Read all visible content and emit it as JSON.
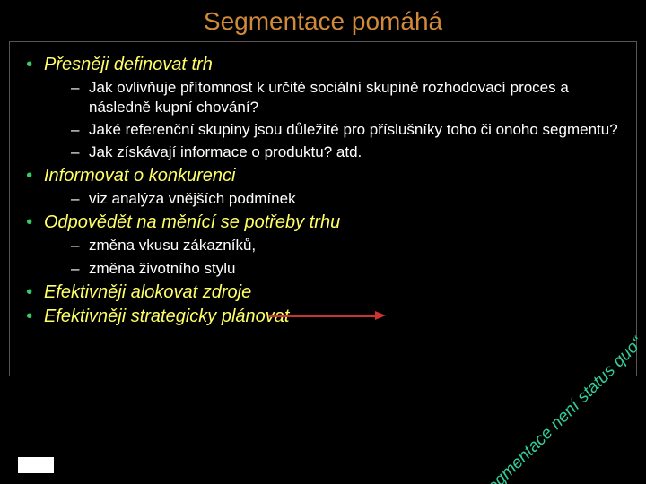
{
  "colors": {
    "background": "#000000",
    "title": "#d08a3a",
    "bullet_l1": "#33cc66",
    "text_l1": "#ffff66",
    "bullet_l2": "#ffffff",
    "text_l2": "#ffffff",
    "quote": "#33cc99",
    "arrow": "#cc3333",
    "border": "#555555"
  },
  "fonts": {
    "title_size": 28,
    "l1_size": 20,
    "l2_size": 17,
    "quote_size": 19
  },
  "title": "Segmentace pomáhá",
  "quote": "„segmentace není status quo“",
  "items": [
    {
      "text": "Přesněji definovat trh",
      "sub": [
        "Jak ovlivňuje přítomnost k určité sociální skupině rozhodovací proces a následně kupní chování?",
        "Jaké referenční skupiny jsou důležité pro příslušníky toho či onoho segmentu?",
        "Jak získávají informace o produktu?  atd."
      ]
    },
    {
      "text": "Informovat o konkurenci",
      "sub": [
        "viz analýza vnějších podmínek"
      ]
    },
    {
      "text": "Odpovědět na měnící se potřeby trhu",
      "sub": [
        " změna vkusu zákazníků,",
        "změna životního stylu"
      ]
    },
    {
      "text": "Efektivněji alokovat zdroje",
      "sub": []
    },
    {
      "text": "Efektivněji strategicky plánovat",
      "sub": []
    }
  ]
}
